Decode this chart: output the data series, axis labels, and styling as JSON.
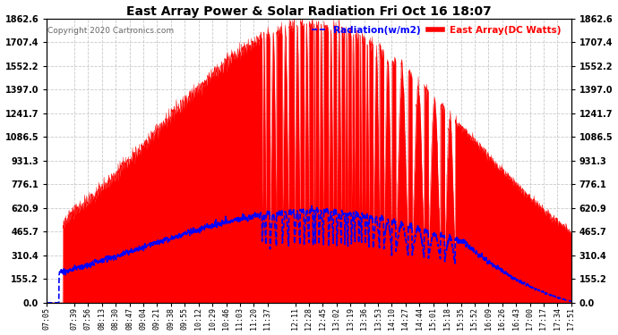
{
  "title": "East Array Power & Solar Radiation Fri Oct 16 18:07",
  "copyright": "Copyright 2020 Cartronics.com",
  "legend_radiation": "Radiation(w/m2)",
  "legend_east": "East Array(DC Watts)",
  "ylabel_values": [
    0.0,
    155.2,
    310.4,
    465.7,
    620.9,
    776.1,
    931.3,
    1086.5,
    1241.7,
    1397.0,
    1552.2,
    1707.4,
    1862.6
  ],
  "ymax": 1862.6,
  "ymin": 0.0,
  "background_color": "#ffffff",
  "plot_bg_color": "#ffffff",
  "grid_color": "#bbbbbb",
  "red_fill_color": "#ff0000",
  "blue_line_color": "#0000ff",
  "title_color": "#000000",
  "x_labels": [
    "07:05",
    "07:39",
    "07:56",
    "08:13",
    "08:30",
    "08:47",
    "09:04",
    "09:21",
    "09:38",
    "09:55",
    "10:12",
    "10:29",
    "10:46",
    "11:03",
    "11:20",
    "11:37",
    "12:11",
    "12:28",
    "12:45",
    "13:02",
    "13:19",
    "13:36",
    "13:53",
    "14:10",
    "14:27",
    "14:44",
    "15:01",
    "15:18",
    "15:35",
    "15:52",
    "16:09",
    "16:26",
    "16:43",
    "17:00",
    "17:17",
    "17:34",
    "17:51"
  ],
  "figsize": [
    6.9,
    3.75
  ],
  "dpi": 100
}
